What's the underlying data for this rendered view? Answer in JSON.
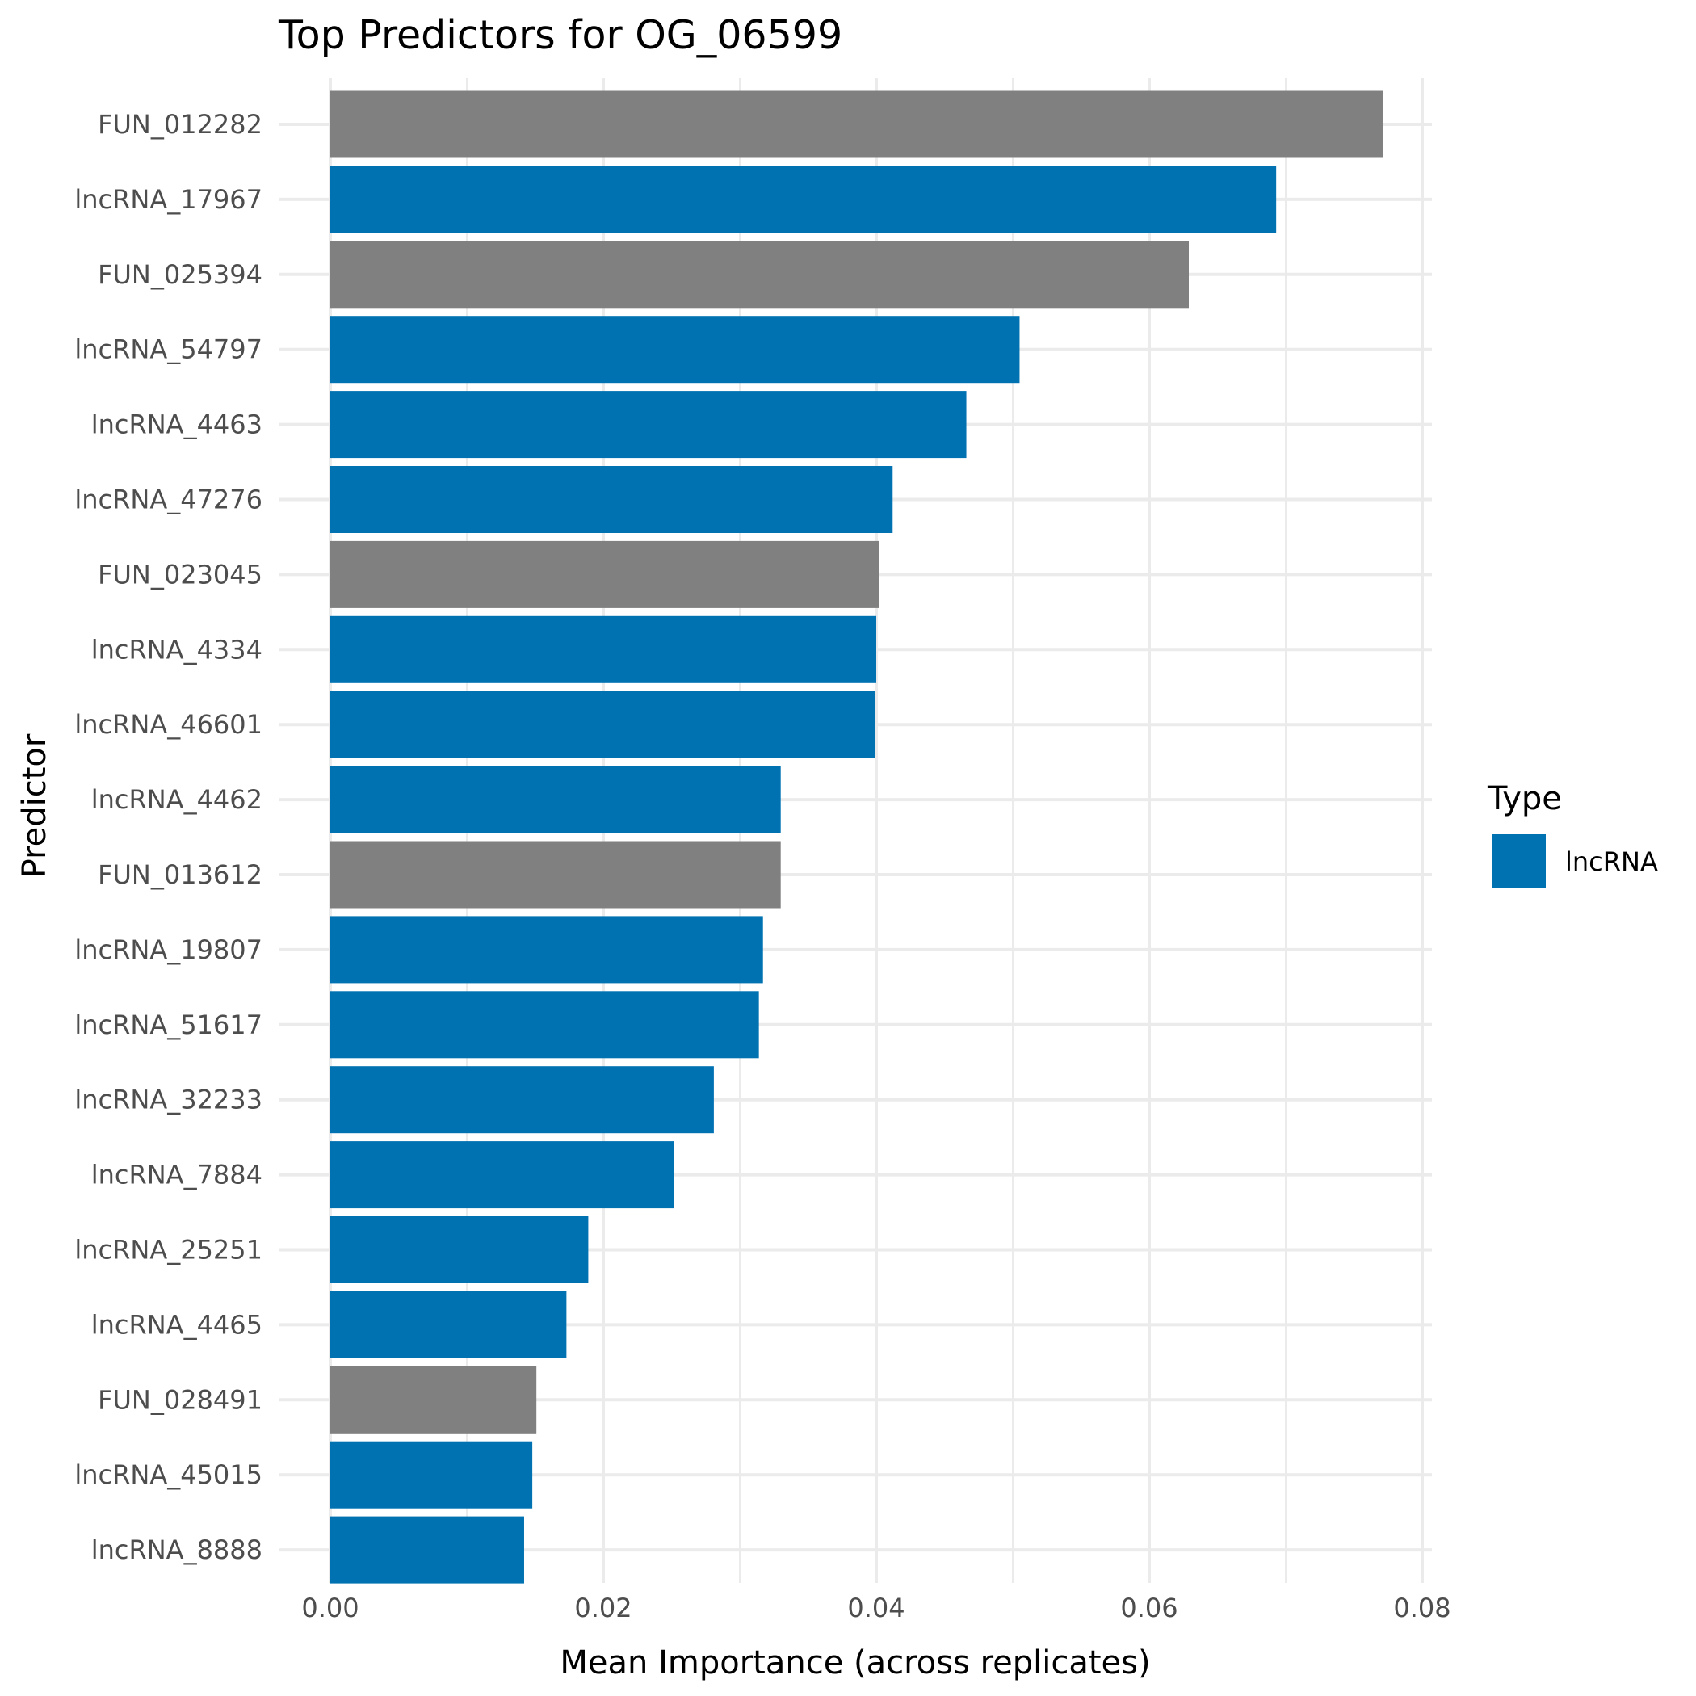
{
  "chart_data": {
    "type": "bar",
    "orientation": "horizontal",
    "title": "Top Predictors for OG_06599",
    "xlabel": "Mean Importance (across replicates)",
    "ylabel": "Predictor",
    "xlim": [
      0,
      0.08
    ],
    "xticks": [
      "0.00",
      "0.02",
      "0.04",
      "0.06",
      "0.08"
    ],
    "grid": true,
    "legend": {
      "title": "Type",
      "placement": "right",
      "entries": [
        {
          "label": "lncRNA",
          "color": "#0072B2"
        }
      ]
    },
    "colors": {
      "lncRNA": "#0072B2",
      "FUN": "#808080"
    },
    "categories": [
      "FUN_012282",
      "lncRNA_17967",
      "FUN_025394",
      "lncRNA_54797",
      "lncRNA_4463",
      "lncRNA_47276",
      "FUN_023045",
      "lncRNA_4334",
      "lncRNA_46601",
      "lncRNA_4462",
      "FUN_013612",
      "lncRNA_19807",
      "lncRNA_51617",
      "lncRNA_32233",
      "lncRNA_7884",
      "lncRNA_25251",
      "lncRNA_4465",
      "FUN_028491",
      "lncRNA_45015",
      "lncRNA_8888"
    ],
    "types": [
      "FUN",
      "lncRNA",
      "FUN",
      "lncRNA",
      "lncRNA",
      "lncRNA",
      "FUN",
      "lncRNA",
      "lncRNA",
      "lncRNA",
      "FUN",
      "lncRNA",
      "lncRNA",
      "lncRNA",
      "lncRNA",
      "lncRNA",
      "lncRNA",
      "FUN",
      "lncRNA",
      "lncRNA"
    ],
    "values": [
      0.0771,
      0.0693,
      0.0629,
      0.0505,
      0.0466,
      0.0412,
      0.0402,
      0.04,
      0.0399,
      0.033,
      0.033,
      0.0317,
      0.0314,
      0.0281,
      0.0252,
      0.0189,
      0.0173,
      0.0151,
      0.0148,
      0.0142
    ]
  }
}
